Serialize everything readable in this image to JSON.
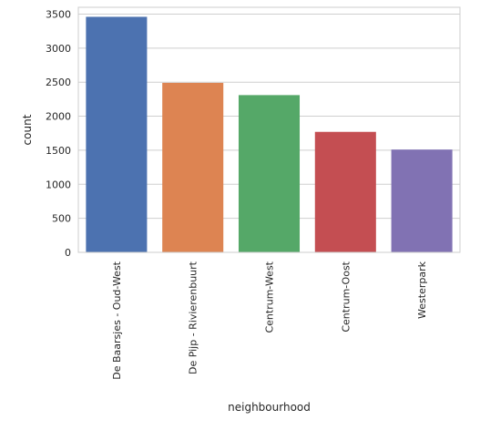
{
  "chart_data": {
    "type": "bar",
    "title": "",
    "xlabel": "neighbourhood",
    "ylabel": "count",
    "categories": [
      "De Baarsjes - Oud-West",
      "De Pijp - Rivierenbuurt",
      "Centrum-West",
      "Centrum-Oost",
      "Westerpark"
    ],
    "values": [
      3460,
      2490,
      2310,
      1770,
      1510
    ],
    "colors": [
      "#4c72b0",
      "#dd8452",
      "#55a868",
      "#c44e52",
      "#8172b3"
    ],
    "ylim": [
      0,
      3600
    ],
    "yticks": [
      0,
      500,
      1000,
      1500,
      2000,
      2500,
      3000,
      3500
    ],
    "ytick_labels": [
      "0",
      "500",
      "1000",
      "1500",
      "2000",
      "2500",
      "3000",
      "3500"
    ],
    "grid": true,
    "legend": "none"
  }
}
